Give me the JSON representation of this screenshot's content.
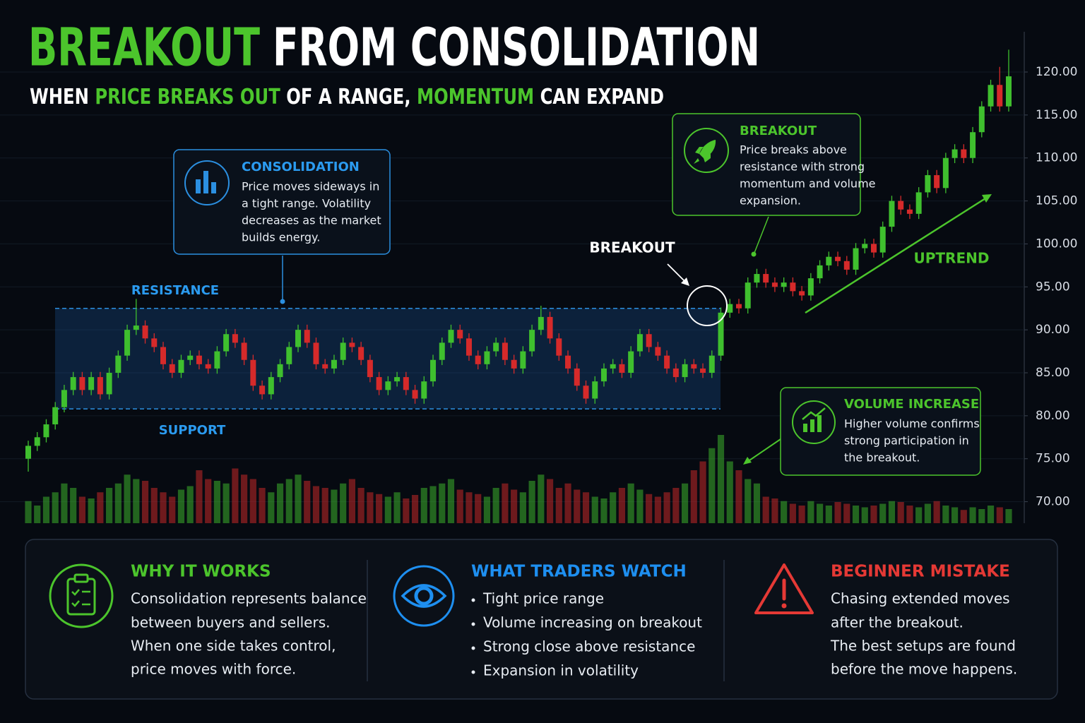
{
  "header": {
    "title_parts": [
      "BREAKOUT",
      "FROM CONSOLIDATION"
    ],
    "subtitle_parts": [
      "WHEN ",
      "PRICE BREAKS OUT",
      " OF A RANGE, ",
      "MOMENTUM",
      " CAN EXPAND"
    ]
  },
  "chart_data": {
    "type": "candlestick",
    "open": [
      75,
      76.5,
      77.5,
      79,
      81,
      83,
      84.5,
      83,
      84.5,
      82.5,
      85,
      87,
      90,
      90.5,
      89,
      88,
      86,
      85,
      86.5,
      87,
      86,
      85.5,
      87.5,
      89.5,
      88.5,
      86.5,
      83.5,
      82.5,
      84.5,
      86,
      88,
      90,
      88.5,
      86,
      85.5,
      86.5,
      88.5,
      88,
      86.5,
      84.5,
      83,
      84,
      84.5,
      83,
      82,
      84,
      86.5,
      88.5,
      90,
      89,
      87,
      86,
      87.5,
      88.5,
      86.5,
      85.5,
      87.5,
      90,
      91.5,
      89,
      87,
      85.5,
      83.5,
      82,
      84,
      85.5,
      86,
      85,
      87.5,
      89.5,
      88,
      87,
      85.5,
      84.5,
      86,
      85.5,
      85,
      87,
      92,
      93,
      92.5,
      95.5,
      96.5,
      95.5,
      95,
      95.5,
      94.5,
      94,
      96,
      97.5,
      98.5,
      98,
      97,
      99.5,
      100,
      99,
      102,
      105,
      104,
      103.5,
      106,
      108,
      106.5,
      110,
      111,
      110,
      113,
      116,
      118.5,
      116
    ],
    "high": [
      77.1,
      78.1,
      79.6,
      81.6,
      83.6,
      85.1,
      85.1,
      85.1,
      85.1,
      85.6,
      87.6,
      90.6,
      93.6,
      91.1,
      89.6,
      88.6,
      86.6,
      87.1,
      87.6,
      87.6,
      86.6,
      88.1,
      90.1,
      90.1,
      89.1,
      87.1,
      84.1,
      85.1,
      86.6,
      88.6,
      90.6,
      90.6,
      89.1,
      86.6,
      87.1,
      89.1,
      89.1,
      88.6,
      87.1,
      85.1,
      84.6,
      85.1,
      85.1,
      83.6,
      84.6,
      87.1,
      89.1,
      90.6,
      90.6,
      89.6,
      87.6,
      88.1,
      89.1,
      89.1,
      87.1,
      88.1,
      90.6,
      92.8,
      92.1,
      89.6,
      87.6,
      86.1,
      84.1,
      84.6,
      86.1,
      86.6,
      86.6,
      88.1,
      90.1,
      90.1,
      88.6,
      87.6,
      86.1,
      86.6,
      86.6,
      86.1,
      87.6,
      92.6,
      93.6,
      93.6,
      96.1,
      97.1,
      97.1,
      96.1,
      96.1,
      96.1,
      95.1,
      96.6,
      98.1,
      99.1,
      99.1,
      98.6,
      100.1,
      100.6,
      100.6,
      102.6,
      105.6,
      105.6,
      104.6,
      106.6,
      108.6,
      108.6,
      110.6,
      111.6,
      111.6,
      113.6,
      116.6,
      119.1,
      120.6,
      122.6
    ],
    "low": [
      73.5,
      75.9,
      76.9,
      78.4,
      80.4,
      82.4,
      82.4,
      82.4,
      81.9,
      81.9,
      84.4,
      86.4,
      89.4,
      88.4,
      87.4,
      85.4,
      84.4,
      84.4,
      85.9,
      85.4,
      84.9,
      84.9,
      86.9,
      87.9,
      85.9,
      82.9,
      81.9,
      81.9,
      83.9,
      85.4,
      87.4,
      87.9,
      85.4,
      84.9,
      84.9,
      85.9,
      87.4,
      85.9,
      83.9,
      82.4,
      82.4,
      83.4,
      82.4,
      81.4,
      81.4,
      83.4,
      85.9,
      87.9,
      88.4,
      86.4,
      85.4,
      85.4,
      86.9,
      85.9,
      84.9,
      84.9,
      86.9,
      89.4,
      88.4,
      86.4,
      84.9,
      82.9,
      81.4,
      81.4,
      83.4,
      84.9,
      84.4,
      84.4,
      86.9,
      87.4,
      86.4,
      84.9,
      83.9,
      83.9,
      84.9,
      84.4,
      84.4,
      86.4,
      91.4,
      91.9,
      91.9,
      94.9,
      94.9,
      94.4,
      94.4,
      93.9,
      93.4,
      93.4,
      95.4,
      96.9,
      97.4,
      96.4,
      96.4,
      98.9,
      98.4,
      98.4,
      101.4,
      103.4,
      102.9,
      102.9,
      105.4,
      105.9,
      105.9,
      109.4,
      109.4,
      109.4,
      112.4,
      115.4,
      115.4,
      115.4
    ],
    "close": [
      76.5,
      77.5,
      79,
      81,
      83,
      84.5,
      83,
      84.5,
      82.5,
      85,
      87,
      90,
      90.5,
      89,
      88,
      86,
      85,
      86.5,
      87,
      86,
      85.5,
      87.5,
      89.5,
      88.5,
      86.5,
      83.5,
      82.5,
      84.5,
      86,
      88,
      90,
      88.5,
      86,
      85.5,
      86.5,
      88.5,
      88,
      86.5,
      84.5,
      83,
      84,
      84.5,
      83,
      82,
      84,
      86.5,
      88.5,
      90,
      89,
      87,
      86,
      87.5,
      88.5,
      86.5,
      85.5,
      87.5,
      90,
      91.5,
      89,
      87,
      85.5,
      83.5,
      82,
      84,
      85.5,
      86,
      85,
      87.5,
      89.5,
      88,
      87,
      85.5,
      84.5,
      86,
      85.5,
      85,
      87,
      92,
      93,
      92.5,
      95.5,
      96.5,
      95.5,
      95,
      95.5,
      94.5,
      94,
      96,
      97.5,
      98.5,
      98,
      97,
      99.5,
      100,
      99,
      102,
      105,
      104,
      103.5,
      106,
      108,
      106.5,
      110,
      111,
      110,
      113,
      116,
      118.5,
      116,
      119.5
    ],
    "volume": [
      25,
      20,
      30,
      35,
      45,
      40,
      30,
      28,
      35,
      40,
      45,
      55,
      50,
      48,
      40,
      35,
      30,
      38,
      42,
      60,
      50,
      48,
      45,
      62,
      55,
      50,
      40,
      35,
      45,
      50,
      55,
      48,
      42,
      40,
      38,
      45,
      50,
      40,
      35,
      33,
      30,
      35,
      28,
      32,
      40,
      42,
      45,
      50,
      38,
      35,
      33,
      30,
      40,
      45,
      38,
      35,
      48,
      55,
      50,
      40,
      45,
      38,
      35,
      30,
      28,
      35,
      40,
      45,
      38,
      33,
      30,
      35,
      40,
      45,
      60,
      70,
      85,
      100,
      70,
      60,
      50,
      45,
      30,
      28,
      25,
      22,
      20,
      25,
      22,
      20,
      24,
      22,
      20,
      18,
      20,
      22,
      25,
      24,
      20,
      18,
      22,
      25,
      20,
      18,
      15,
      18,
      16,
      20,
      18,
      16
    ],
    "up_color": "#3fbf2e",
    "down_color": "#d62a2a",
    "grid": true,
    "ylim": [
      67.5,
      123
    ],
    "yticks": [
      {
        "value": 70,
        "label": "70.00"
      },
      {
        "value": 75,
        "label": "75.00"
      },
      {
        "value": 80,
        "label": "80.00"
      },
      {
        "value": 85,
        "label": "85.00"
      },
      {
        "value": 90,
        "label": "90.00"
      },
      {
        "value": 95,
        "label": "95.00"
      },
      {
        "value": 100,
        "label": "100.00"
      },
      {
        "value": 105,
        "label": "105.00"
      },
      {
        "value": 110,
        "label": "110.00"
      },
      {
        "value": 115,
        "label": "115.00"
      },
      {
        "value": 120,
        "label": "120.00"
      }
    ],
    "resistance": 92.5,
    "support": 80.8,
    "labels": {
      "resistance": "RESISTANCE",
      "support": "SUPPORT",
      "breakout": "BREAKOUT",
      "uptrend": "UPTREND"
    }
  },
  "callouts": [
    {
      "title": "CONSOLIDATION",
      "lines": [
        "Price moves sideways in",
        "a tight range. Volatility",
        "decreases as the market",
        "builds energy."
      ]
    },
    {
      "title": "BREAKOUT",
      "lines": [
        "Price breaks above",
        "resistance with strong",
        "momentum and volume",
        "expansion."
      ]
    },
    {
      "title": "VOLUME INCREASE",
      "lines": [
        "Higher volume confirms",
        "strong participation in",
        "the breakout."
      ]
    }
  ],
  "panels": [
    {
      "title": "WHY IT WORKS",
      "lines": [
        "Consolidation represents balance",
        "between buyers and sellers.",
        "When one side takes control,",
        "price moves with force."
      ]
    },
    {
      "title": "WHAT TRADERS WATCH",
      "lines": [
        "Tight price range",
        "Volume increasing on breakout",
        "Strong close above resistance",
        "Expansion in volatility"
      ]
    },
    {
      "title": "BEGINNER MISTAKE",
      "lines": [
        "Chasing extended moves",
        "after the breakout.",
        "The best setups are found",
        "before the move happens."
      ]
    }
  ]
}
